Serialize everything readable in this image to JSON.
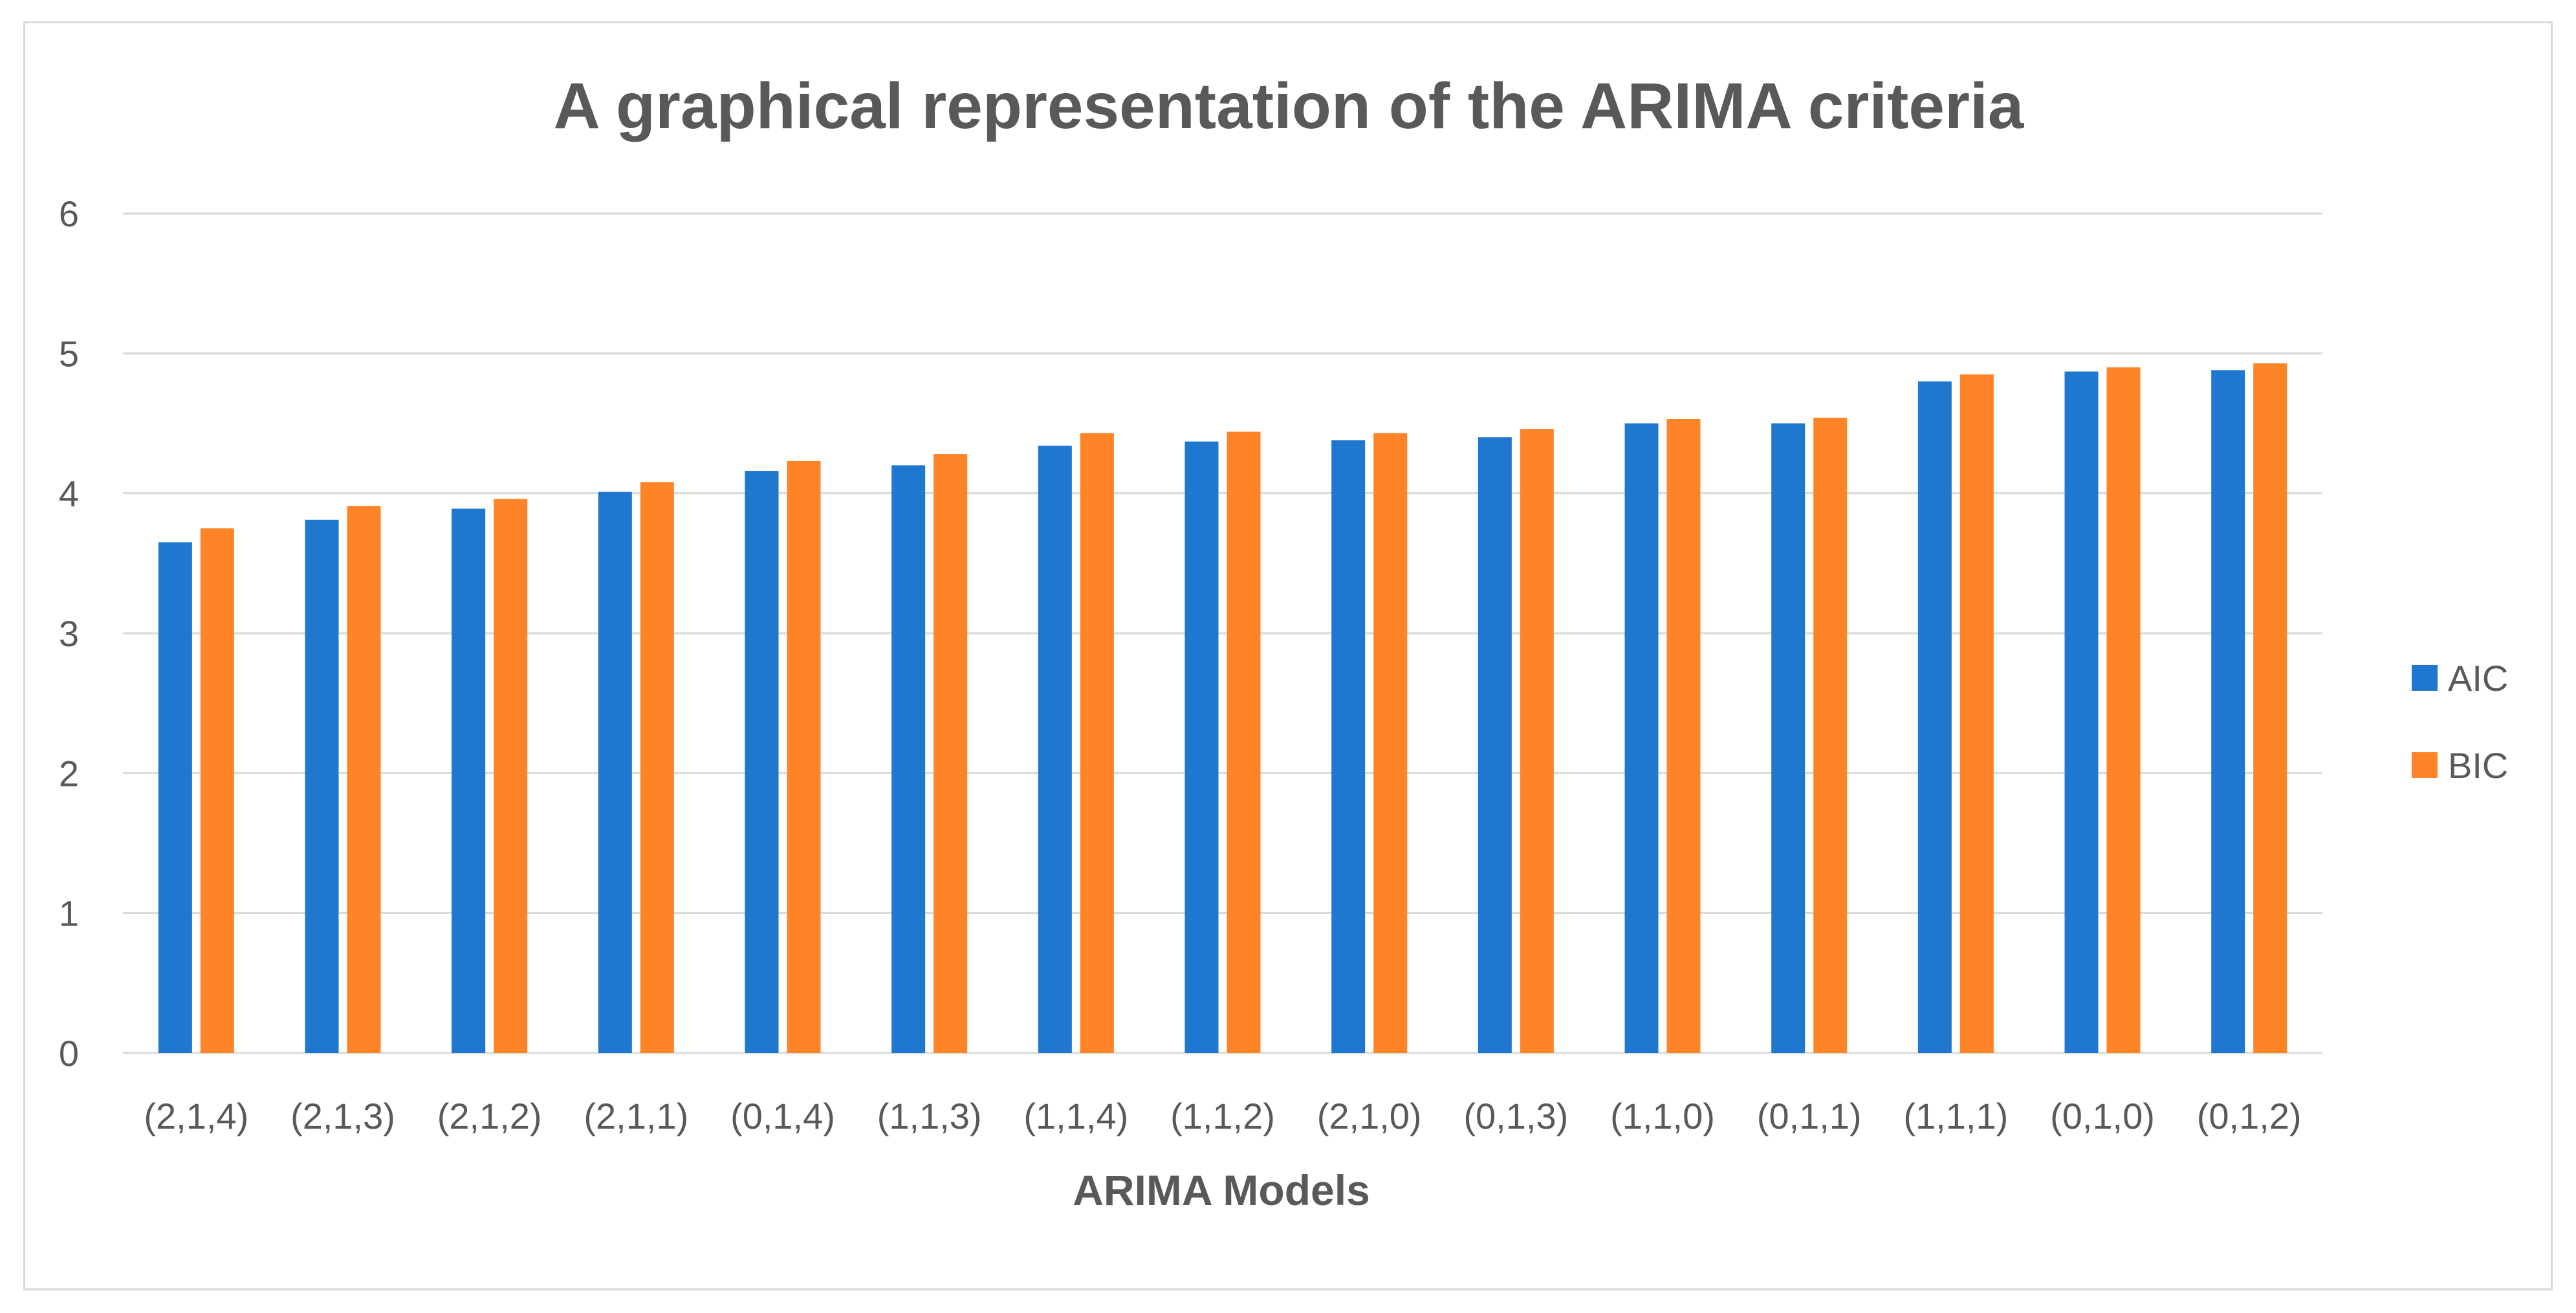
{
  "chart_data": {
    "type": "bar",
    "title": "A graphical representation of the ARIMA criteria",
    "xlabel": "ARIMA Models",
    "ylabel": "",
    "ylim": [
      0,
      6
    ],
    "yticks": [
      "0",
      "1",
      "2",
      "3",
      "4",
      "5",
      "6"
    ],
    "grid": true,
    "legend_position": "right",
    "categories": [
      "(2,1,4)",
      "(2,1,3)",
      "(2,1,2)",
      "(2,1,1)",
      "(0,1,4)",
      "(1,1,3)",
      "(1,1,4)",
      "(1,1,2)",
      "(2,1,0)",
      "(0,1,3)",
      "(1,1,0)",
      "(0,1,1)",
      "(1,1,1)",
      "(0,1,0)",
      "(0,1,2)"
    ],
    "series": [
      {
        "name": "AIC",
        "color": "#1f77d0",
        "values": [
          3.65,
          3.81,
          3.89,
          4.01,
          4.16,
          4.2,
          4.34,
          4.37,
          4.38,
          4.4,
          4.5,
          4.5,
          4.8,
          4.87,
          4.88
        ]
      },
      {
        "name": "BIC",
        "color": "#ff8427",
        "values": [
          3.75,
          3.91,
          3.96,
          4.08,
          4.23,
          4.28,
          4.43,
          4.44,
          4.43,
          4.46,
          4.53,
          4.54,
          4.85,
          4.9,
          4.93
        ]
      }
    ]
  }
}
